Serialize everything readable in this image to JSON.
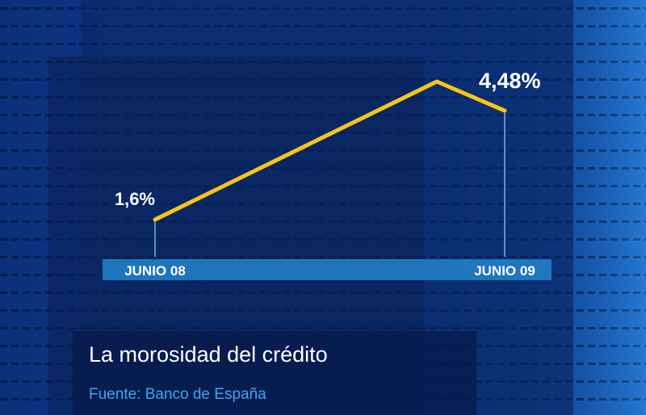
{
  "chart_data": {
    "type": "line",
    "title": "La morosidad del crédito",
    "source": "Fuente: Banco de España",
    "categories": [
      "JUNIO 08",
      null,
      "JUNIO 09"
    ],
    "series": [
      {
        "name": "Morosidad",
        "color": "#f5c518",
        "values": [
          1.6,
          5.25,
          4.48
        ],
        "value_labels": [
          "1,6%",
          null,
          "4,48%"
        ]
      }
    ]
  }
}
